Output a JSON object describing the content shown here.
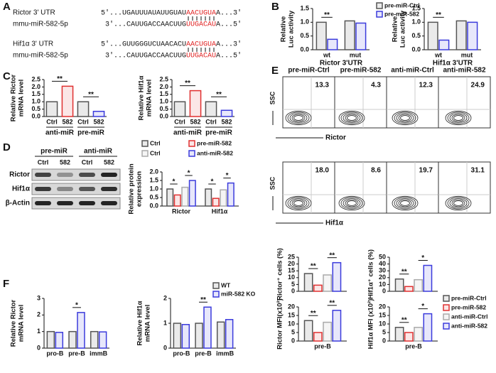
{
  "panels": [
    "A",
    "B",
    "C",
    "D",
    "E",
    "F"
  ],
  "alignment": [
    {
      "gene": "Rictor 3' UTR",
      "prefix": "5'...UGAUUUAUAUUGUAU",
      "site": "AACUGUA",
      "suffix": "A...3'"
    },
    {
      "gene": "mmu-miR-582-5p",
      "prefix": "3'...CAUUGACCAACUUG",
      "site": "UUGACAU",
      "suffix": "A...5'"
    },
    {
      "gene": "Hif1α 3' UTR",
      "prefix": "5'...GUUGGGUCUAACACU",
      "site": "AACUGUA",
      "suffix": "A...3'"
    },
    {
      "gene": "mmu-miR-582-5p",
      "prefix": "3'...CAUUGACCAACUUG",
      "site": "UUGACAU",
      "suffix": "A...5'"
    }
  ],
  "blot": {
    "groups": [
      "pre-miR",
      "anti-miR"
    ],
    "lanes": [
      "Ctrl",
      "582",
      "Ctrl",
      "582"
    ],
    "proteins": [
      "Rictor",
      "Hif1α",
      "β-Actin"
    ]
  },
  "flow": {
    "columns": [
      "pre-miR-Ctrl",
      "pre-miR-582",
      "anti-miR-Ctrl",
      "anti-miR-582"
    ],
    "rows": [
      {
        "y_label": "SSC",
        "marker": "Rictor",
        "values": [
          "13.3",
          "4.3",
          "12.3",
          "24.9"
        ]
      },
      {
        "y_label": "SSC",
        "marker": "Hif1α",
        "values": [
          "18.0",
          "8.6",
          "19.7",
          "31.1"
        ]
      }
    ]
  },
  "chart_data": [
    {
      "type": "bar",
      "ylabel": [
        "Relative",
        "Luc activity"
      ],
      "xlabel": "Rictor 3'UTR",
      "categories": [
        "wt",
        "mut"
      ],
      "series": [
        {
          "name": "pre-miR-Ctrl",
          "color": "#555555",
          "values": [
            1.0,
            1.05
          ]
        },
        {
          "name": "pre-miR-582",
          "color": "#3b3bdc",
          "values": [
            0.38,
            0.97
          ]
        }
      ],
      "ylim": [
        0,
        1.5
      ],
      "yticks": [
        {
          "value": 0,
          "label": "0.0"
        },
        {
          "value": 0.5,
          "label": "0.5"
        },
        {
          "value": 1,
          "label": "1.0"
        },
        {
          "value": 1.5,
          "label": "1.5"
        }
      ],
      "annotations": [
        "**"
      ],
      "legend": "upper right"
    },
    {
      "type": "bar",
      "ylabel": [
        "Relative",
        "Luc activity"
      ],
      "xlabel": "Hif1α 3'UTR",
      "categories": [
        "wt",
        "mut"
      ],
      "series": [
        {
          "color": "#555555",
          "values": [
            1.0,
            1.05
          ]
        },
        {
          "color": "#3b3bdc",
          "values": [
            0.35,
            1.0
          ]
        }
      ],
      "ylim": [
        0,
        1.5
      ],
      "yticks": [
        {
          "value": 0,
          "label": "0.0"
        },
        {
          "value": 0.5,
          "label": "0.5"
        },
        {
          "value": 1,
          "label": "1.0"
        },
        {
          "value": 1.5,
          "label": "1.5"
        }
      ],
      "annotations": [
        "**"
      ]
    },
    {
      "type": "bar",
      "ylabel": [
        "Relative Rictor",
        "mRNA level"
      ],
      "categories": [
        "Ctrl",
        "582",
        "Ctrl",
        "582"
      ],
      "group_labels": [
        "anti-miR",
        "pre-miR"
      ],
      "values": [
        1.0,
        2.05,
        1.0,
        0.35
      ],
      "colors": [
        "#555555",
        "#e03030",
        "#555555",
        "#3b3bdc"
      ],
      "ylim": [
        0,
        2.5
      ],
      "yticks": [
        {
          "value": 0,
          "label": "0.0"
        },
        {
          "value": 0.5,
          "label": "0.5"
        },
        {
          "value": 1,
          "label": "1.0"
        },
        {
          "value": 1.5,
          "label": "1.5"
        },
        {
          "value": 2,
          "label": "2.0"
        },
        {
          "value": 2.5,
          "label": "2.5"
        }
      ],
      "annotations": [
        "**",
        "**"
      ]
    },
    {
      "type": "bar",
      "ylabel": [
        "Relative Hif1α",
        "mRNA level"
      ],
      "categories": [
        "Ctrl",
        "582",
        "Ctrl",
        "582"
      ],
      "group_labels": [
        "anti-miR",
        "pre-miR"
      ],
      "values": [
        1.0,
        1.75,
        1.0,
        0.42
      ],
      "colors": [
        "#555555",
        "#e03030",
        "#555555",
        "#3b3bdc"
      ],
      "ylim": [
        0,
        2.5
      ],
      "yticks": [
        {
          "value": 0,
          "label": "0.0"
        },
        {
          "value": 0.5,
          "label": "0.5"
        },
        {
          "value": 1,
          "label": "1.0"
        },
        {
          "value": 1.5,
          "label": "1.5"
        },
        {
          "value": 2,
          "label": "2.0"
        },
        {
          "value": 2.5,
          "label": "2.5"
        }
      ],
      "annotations": [
        "**",
        "**"
      ]
    },
    {
      "type": "bar",
      "ylabel": [
        "Relative protein",
        "expression"
      ],
      "categories": [
        "Rictor",
        "Hif1α"
      ],
      "series": [
        {
          "name": "Ctrl",
          "color": "#555555",
          "values": [
            1.0,
            1.0
          ]
        },
        {
          "name": "pre-miR-582",
          "color": "#e03030",
          "values": [
            0.65,
            0.45
          ]
        },
        {
          "name": "Ctrl",
          "color": "#aaaaaa",
          "values": [
            1.1,
            0.95
          ]
        },
        {
          "name": "anti-miR-582",
          "color": "#3b3bdc",
          "values": [
            1.5,
            1.35
          ]
        }
      ],
      "ylim": [
        0,
        2
      ],
      "yticks": [
        {
          "value": 0,
          "label": "0.0"
        },
        {
          "value": 0.5,
          "label": "0.5"
        },
        {
          "value": 1,
          "label": "1.0"
        },
        {
          "value": 1.5,
          "label": "1.5"
        },
        {
          "value": 2,
          "label": "2.0"
        }
      ],
      "annotations": [
        "*",
        "*",
        "*",
        "*"
      ],
      "legend": "top"
    },
    {
      "type": "bar",
      "ylabel": [
        "Relative Rictor",
        "mRNA level"
      ],
      "categories": [
        "pro-B",
        "pre-B",
        "immB"
      ],
      "series": [
        {
          "color": "#555555",
          "values": [
            1.0,
            1.0,
            1.0
          ]
        },
        {
          "color": "#3b3bdc",
          "values": [
            0.95,
            2.15,
            0.98
          ]
        }
      ],
      "ylim": [
        0,
        3
      ],
      "yticks": [
        0,
        1,
        2,
        3
      ],
      "annotations": [
        "*"
      ]
    },
    {
      "type": "bar",
      "ylabel": [
        "Relative Hif1α",
        "mRNA level"
      ],
      "categories": [
        "pro-B",
        "pre-B",
        "immB"
      ],
      "series": [
        {
          "name": "WT",
          "color": "#555555",
          "values": [
            1.0,
            1.0,
            1.05
          ]
        },
        {
          "name": "miR-582 KO",
          "color": "#3b3bdc",
          "values": [
            0.95,
            1.65,
            1.15
          ]
        }
      ],
      "ylim": [
        0,
        2
      ],
      "yticks": [
        0,
        1,
        2
      ],
      "annotations": [
        "**"
      ],
      "legend": "upper right"
    },
    {
      "type": "bar",
      "ylabel": [
        "Rictor⁺ cells (%)"
      ],
      "categories": [
        null
      ],
      "series": [
        {
          "color": "#555555",
          "values": [
            13
          ]
        },
        {
          "color": "#e03030",
          "values": [
            4.5
          ]
        },
        {
          "color": "#aaaaaa",
          "values": [
            12
          ]
        },
        {
          "color": "#3b3bdc",
          "values": [
            21
          ]
        }
      ],
      "ylim": [
        0,
        25
      ],
      "yticks": [
        0,
        5,
        10,
        15,
        20,
        25
      ],
      "annotations": [
        "**",
        "**"
      ]
    },
    {
      "type": "bar",
      "ylabel": [
        "Hif1α⁺ cells (%)"
      ],
      "categories": [
        null
      ],
      "series": [
        {
          "name": "pre-miR-Ctrl",
          "color": "#555555",
          "values": [
            18
          ]
        },
        {
          "name": "pre-miR-582",
          "color": "#e03030",
          "values": [
            7
          ]
        },
        {
          "name": "anti-miR-Ctrl",
          "color": "#aaaaaa",
          "values": [
            17
          ]
        },
        {
          "name": "anti-miR-582",
          "color": "#3b3bdc",
          "values": [
            38
          ]
        }
      ],
      "ylim": [
        0,
        50
      ],
      "yticks": [
        0,
        10,
        20,
        30,
        40,
        50
      ],
      "annotations": [
        "**",
        "*"
      ],
      "legend": "right"
    },
    {
      "type": "bar",
      "ylabel": [
        "Rictor MFI(x10²)"
      ],
      "categories": [
        "pre-B"
      ],
      "series": [
        {
          "color": "#555555",
          "values": [
            12
          ]
        },
        {
          "color": "#e03030",
          "values": [
            5
          ]
        },
        {
          "color": "#aaaaaa",
          "values": [
            11
          ]
        },
        {
          "color": "#3b3bdc",
          "values": [
            18
          ]
        }
      ],
      "ylim": [
        0,
        20
      ],
      "yticks": [
        0,
        5,
        10,
        15,
        20
      ],
      "annotations": [
        "**",
        "**"
      ]
    },
    {
      "type": "bar",
      "ylabel": [
        "Hif1α MFI (x10²)"
      ],
      "categories": [
        "pre-B"
      ],
      "series": [
        {
          "color": "#555555",
          "values": [
            8
          ]
        },
        {
          "color": "#e03030",
          "values": [
            5
          ]
        },
        {
          "color": "#aaaaaa",
          "values": [
            8
          ]
        },
        {
          "color": "#3b3bdc",
          "values": [
            16
          ]
        }
      ],
      "ylim": [
        0,
        20
      ],
      "yticks": [
        0,
        5,
        10,
        15,
        20
      ],
      "annotations": [
        "**",
        "*"
      ]
    }
  ]
}
